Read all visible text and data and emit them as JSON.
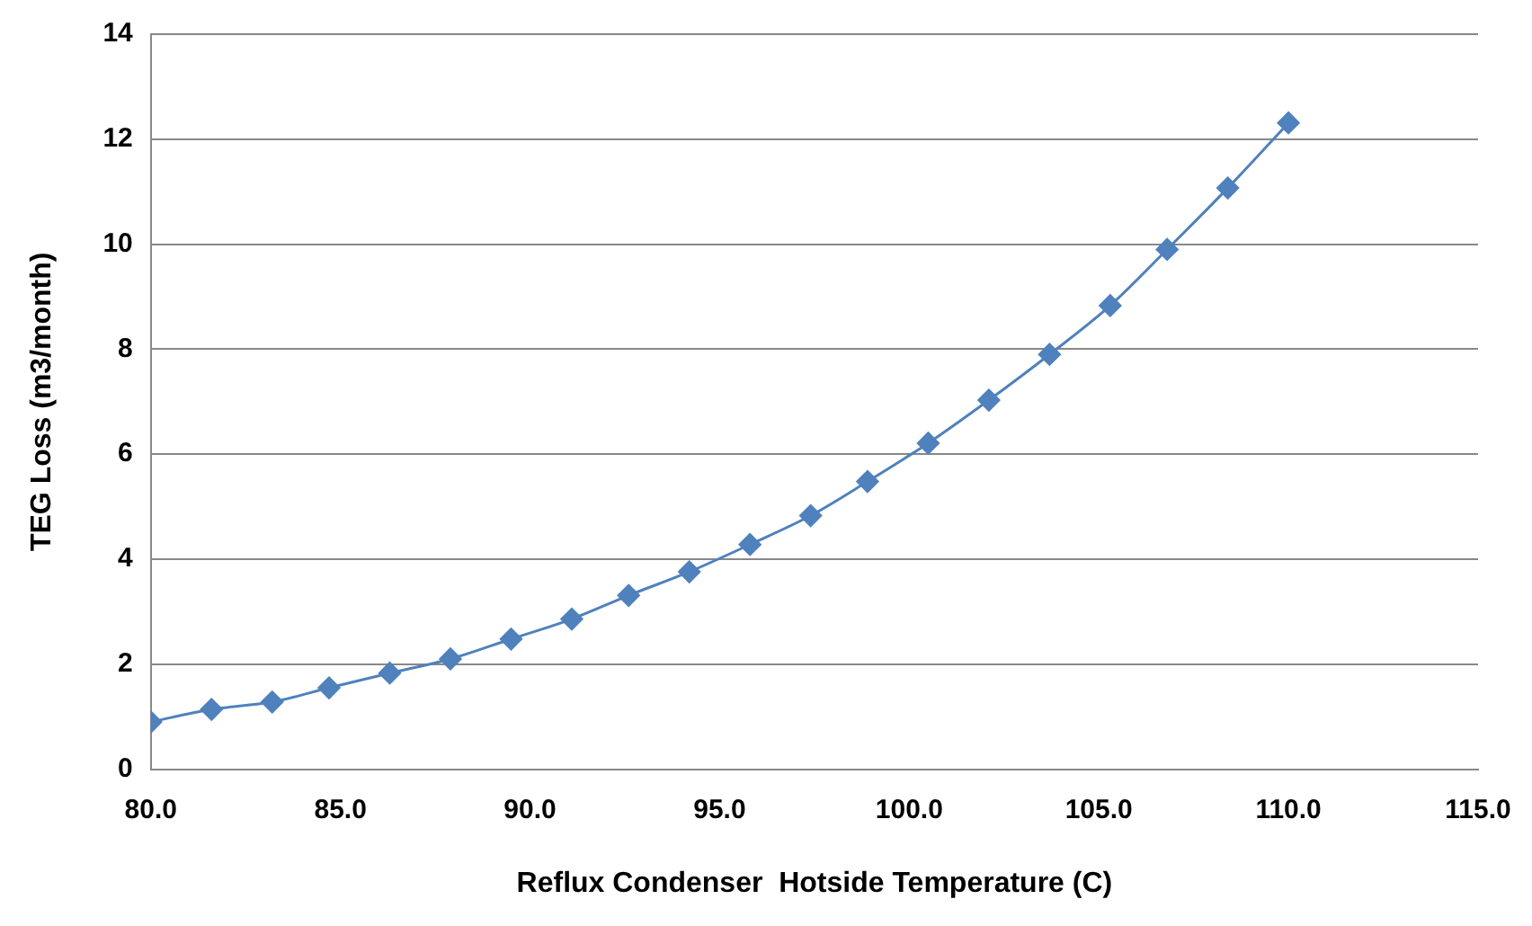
{
  "chart_data": {
    "type": "line",
    "xlabel": "Reflux Condenser  Hotside Temperature (C)",
    "ylabel": "TEG Loss (m3/month)",
    "x": [
      80,
      81.6,
      83.2,
      84.7,
      86.3,
      87.9,
      89.5,
      91.1,
      92.6,
      94.2,
      95.8,
      97.4,
      98.9,
      100.5,
      102.1,
      103.7,
      105.3,
      106.8,
      108.4,
      110
    ],
    "series": [
      {
        "color": "#4f81bd",
        "values": [
          0.9,
          1.14,
          1.28,
          1.55,
          1.83,
          2.1,
          2.48,
          2.86,
          3.31,
          3.76,
          4.28,
          4.83,
          5.48,
          6.21,
          7.03,
          7.9,
          8.83,
          9.9,
          11.07,
          12.31
        ]
      }
    ],
    "xlim": [
      80,
      115
    ],
    "xticks": [
      {
        "value": 80,
        "label": "80.0"
      },
      {
        "value": 85,
        "label": "85.0"
      },
      {
        "value": 90,
        "label": "90.0"
      },
      {
        "value": 95,
        "label": "95.0"
      },
      {
        "value": 100,
        "label": "100.0"
      },
      {
        "value": 105,
        "label": "105.0"
      },
      {
        "value": 110,
        "label": "110.0"
      },
      {
        "value": 115,
        "label": "115.0"
      }
    ],
    "ylim": [
      0,
      14
    ],
    "yticks": [
      0,
      2,
      4,
      6,
      8,
      10,
      12,
      14
    ],
    "grid": "y",
    "legend": false,
    "marker": "diamond",
    "line_style": "solid"
  }
}
